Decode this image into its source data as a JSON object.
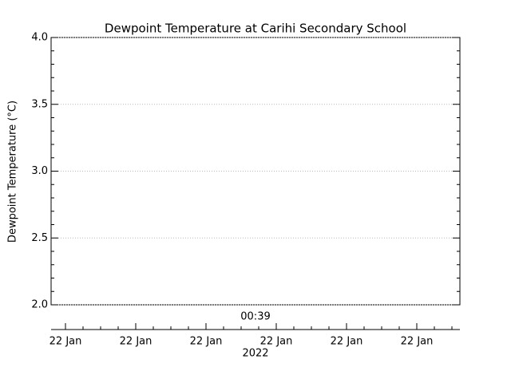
{
  "chart_data": {
    "type": "line",
    "title": "Dewpoint Temperature at Carihi Secondary School",
    "y_label": "Dewpoint Temperature (°C)",
    "series": [],
    "ylim": [
      2.0,
      4.0
    ],
    "yticks": [
      {
        "value": 2.0,
        "label": "2.0"
      },
      {
        "value": 2.5,
        "label": "2.5"
      },
      {
        "value": 3.0,
        "label": "3.0"
      },
      {
        "value": 3.5,
        "label": "3.5"
      },
      {
        "value": 4.0,
        "label": "4.0"
      }
    ],
    "y_minor_divisions": 5,
    "grid": true,
    "time_label": "00:39",
    "x_tick_labels": [
      "22 Jan",
      "22 Jan",
      "22 Jan",
      "22 Jan",
      "22 Jan",
      "22 Jan"
    ],
    "x_year_label": "2022"
  }
}
